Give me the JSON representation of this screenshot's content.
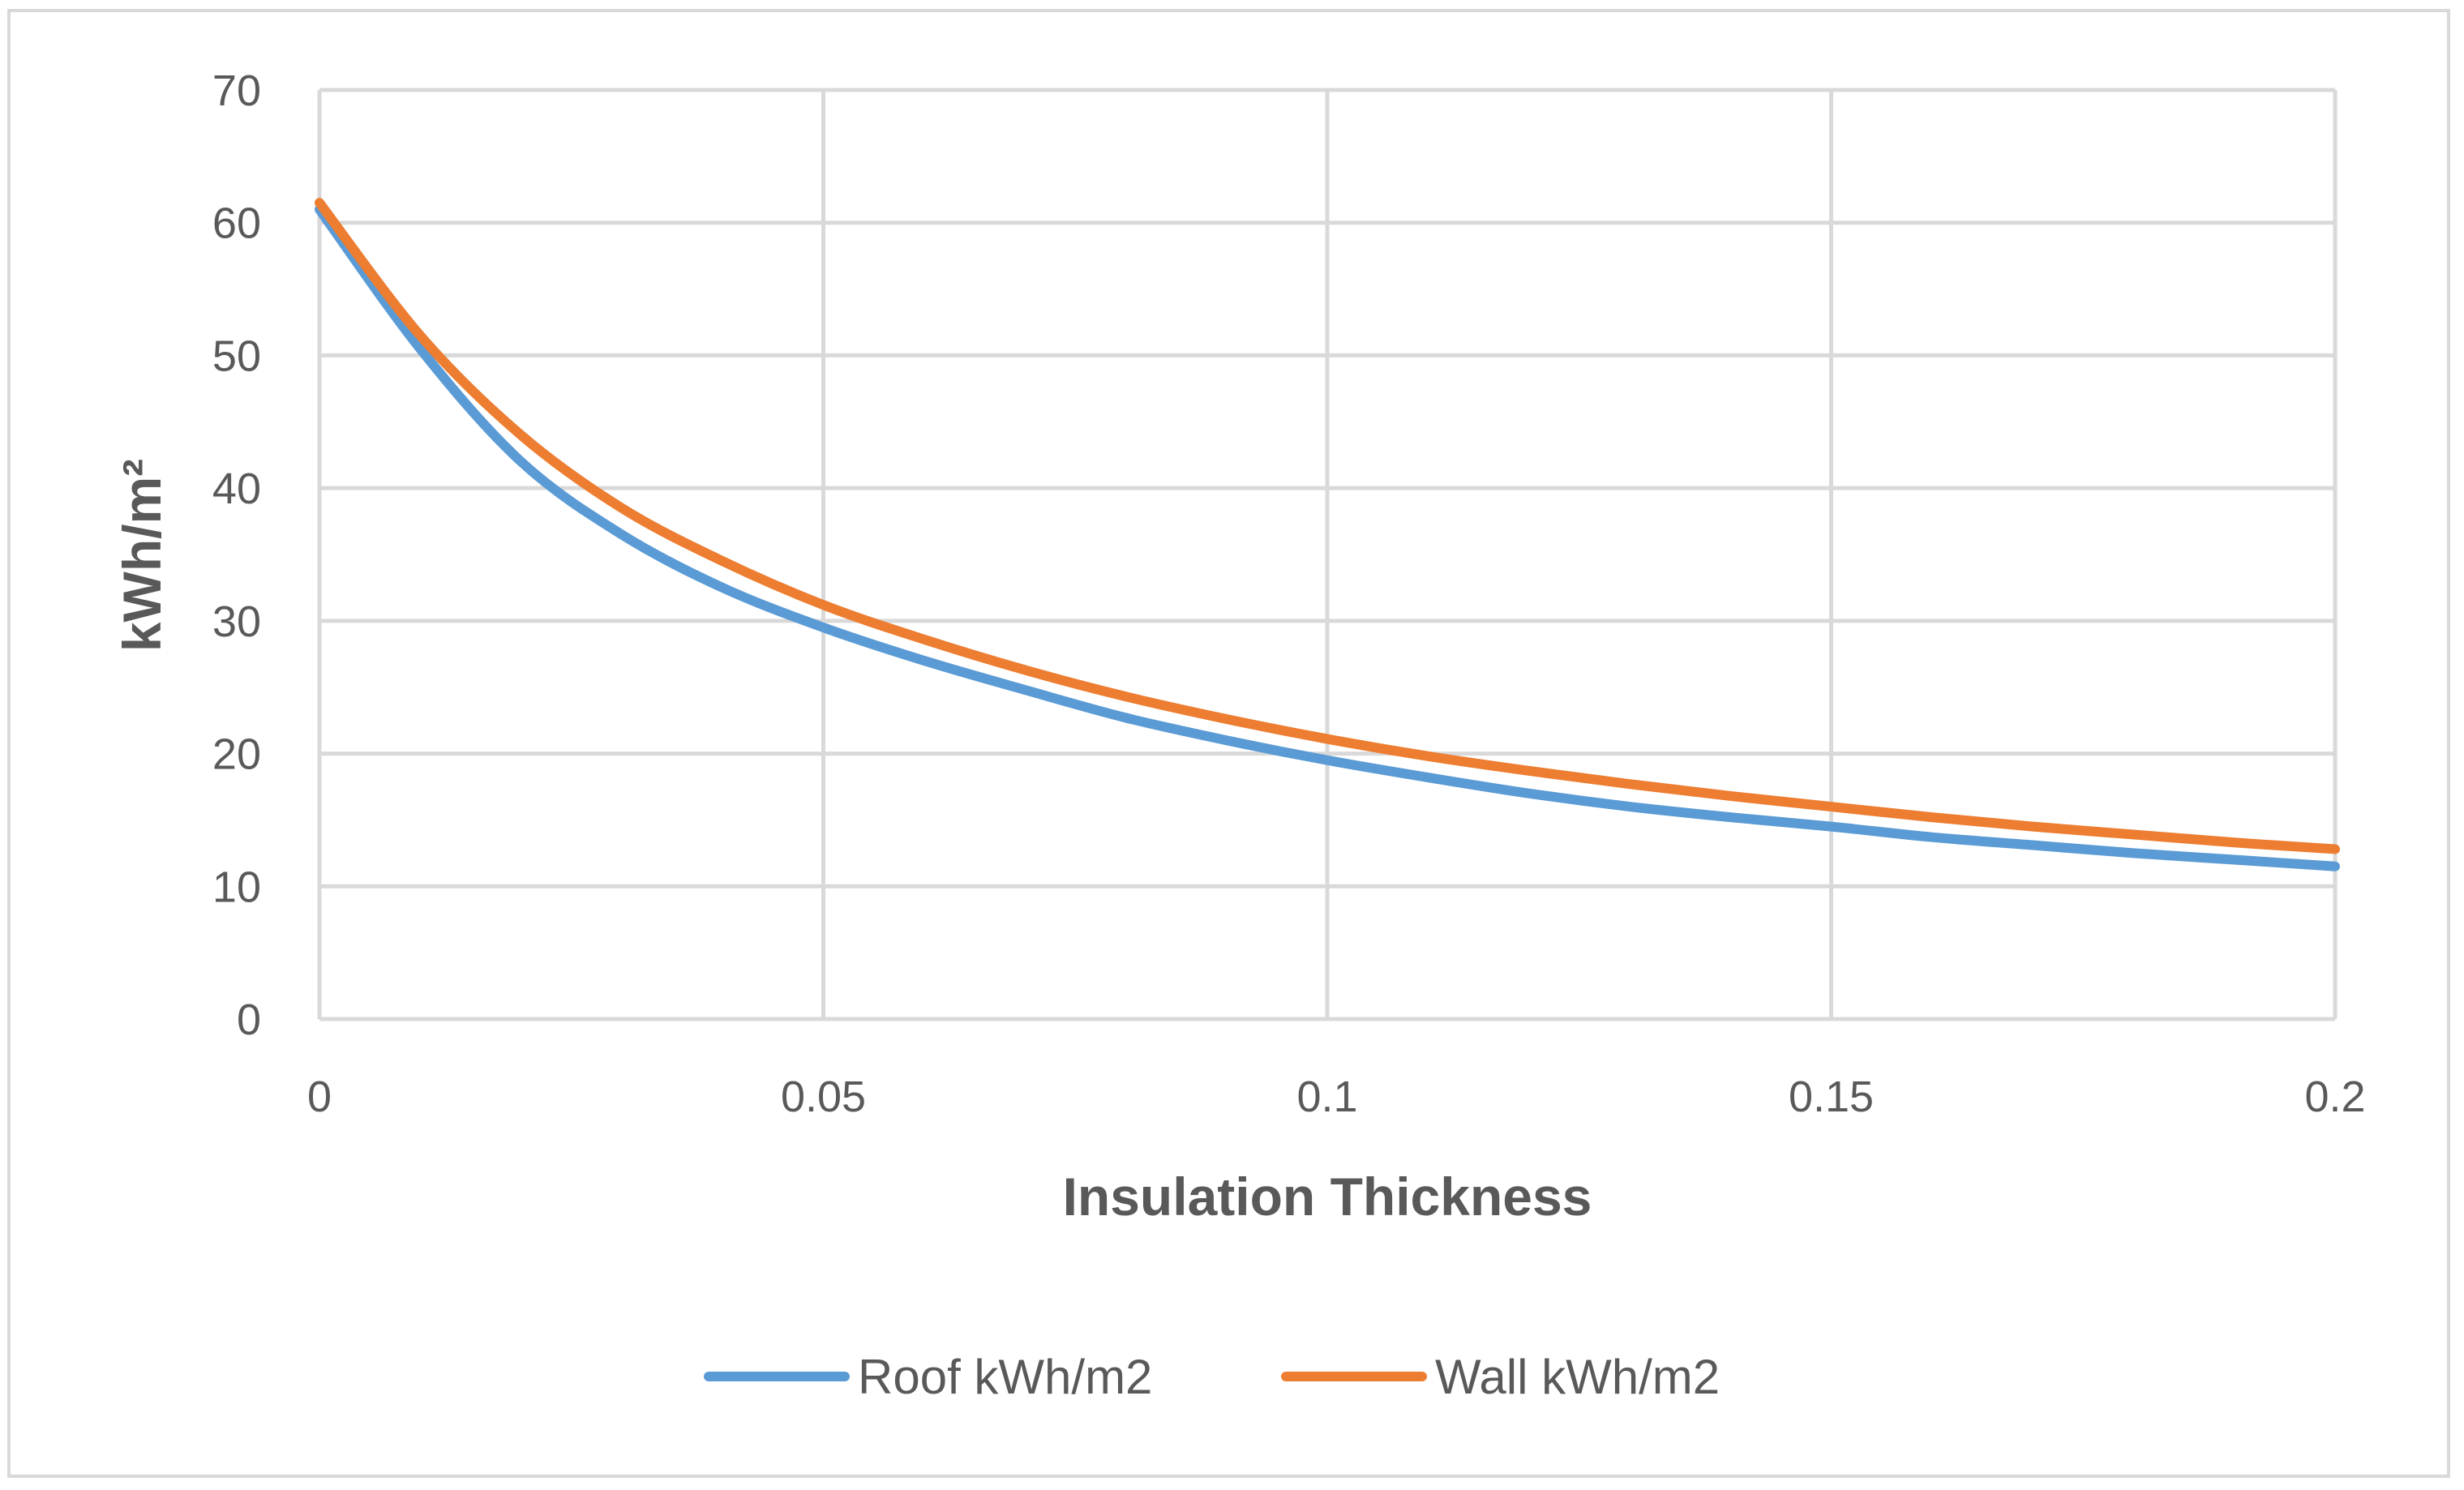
{
  "chart_data": {
    "type": "line",
    "title": "",
    "xlabel": "Insulation Thickness",
    "ylabel": "kWh/m²",
    "xlim": [
      0,
      0.2
    ],
    "ylim": [
      0,
      70
    ],
    "x_ticks": [
      0,
      0.05,
      0.1,
      0.15,
      0.2
    ],
    "x_tick_labels": [
      "0",
      "0.05",
      "0.1",
      "0.15",
      "0.2"
    ],
    "y_ticks": [
      0,
      10,
      20,
      30,
      40,
      50,
      60,
      70
    ],
    "y_tick_labels": [
      "0",
      "10",
      "20",
      "30",
      "40",
      "50",
      "60",
      "70"
    ],
    "grid": true,
    "legend_position": "bottom",
    "x": [
      0,
      0.01,
      0.02,
      0.03,
      0.04,
      0.05,
      0.06,
      0.07,
      0.08,
      0.09,
      0.1,
      0.11,
      0.12,
      0.13,
      0.14,
      0.15,
      0.16,
      0.17,
      0.18,
      0.19,
      0.2
    ],
    "series": [
      {
        "name": "Roof kWh/m2",
        "color": "#5b9bd5",
        "values": [
          61,
          50.5,
          42,
          36.5,
          32.5,
          29.5,
          27,
          24.8,
          22.7,
          21,
          19.5,
          18.2,
          17,
          16,
          15.2,
          14.5,
          13.7,
          13.1,
          12.5,
          12,
          11.5
        ]
      },
      {
        "name": "Wall kWh/m2",
        "color": "#ed7d31",
        "values": [
          61.5,
          51.5,
          44,
          38.5,
          34.5,
          31.2,
          28.6,
          26.3,
          24.3,
          22.6,
          21.1,
          19.8,
          18.7,
          17.7,
          16.8,
          16,
          15.2,
          14.5,
          13.9,
          13.3,
          12.8
        ]
      }
    ]
  }
}
